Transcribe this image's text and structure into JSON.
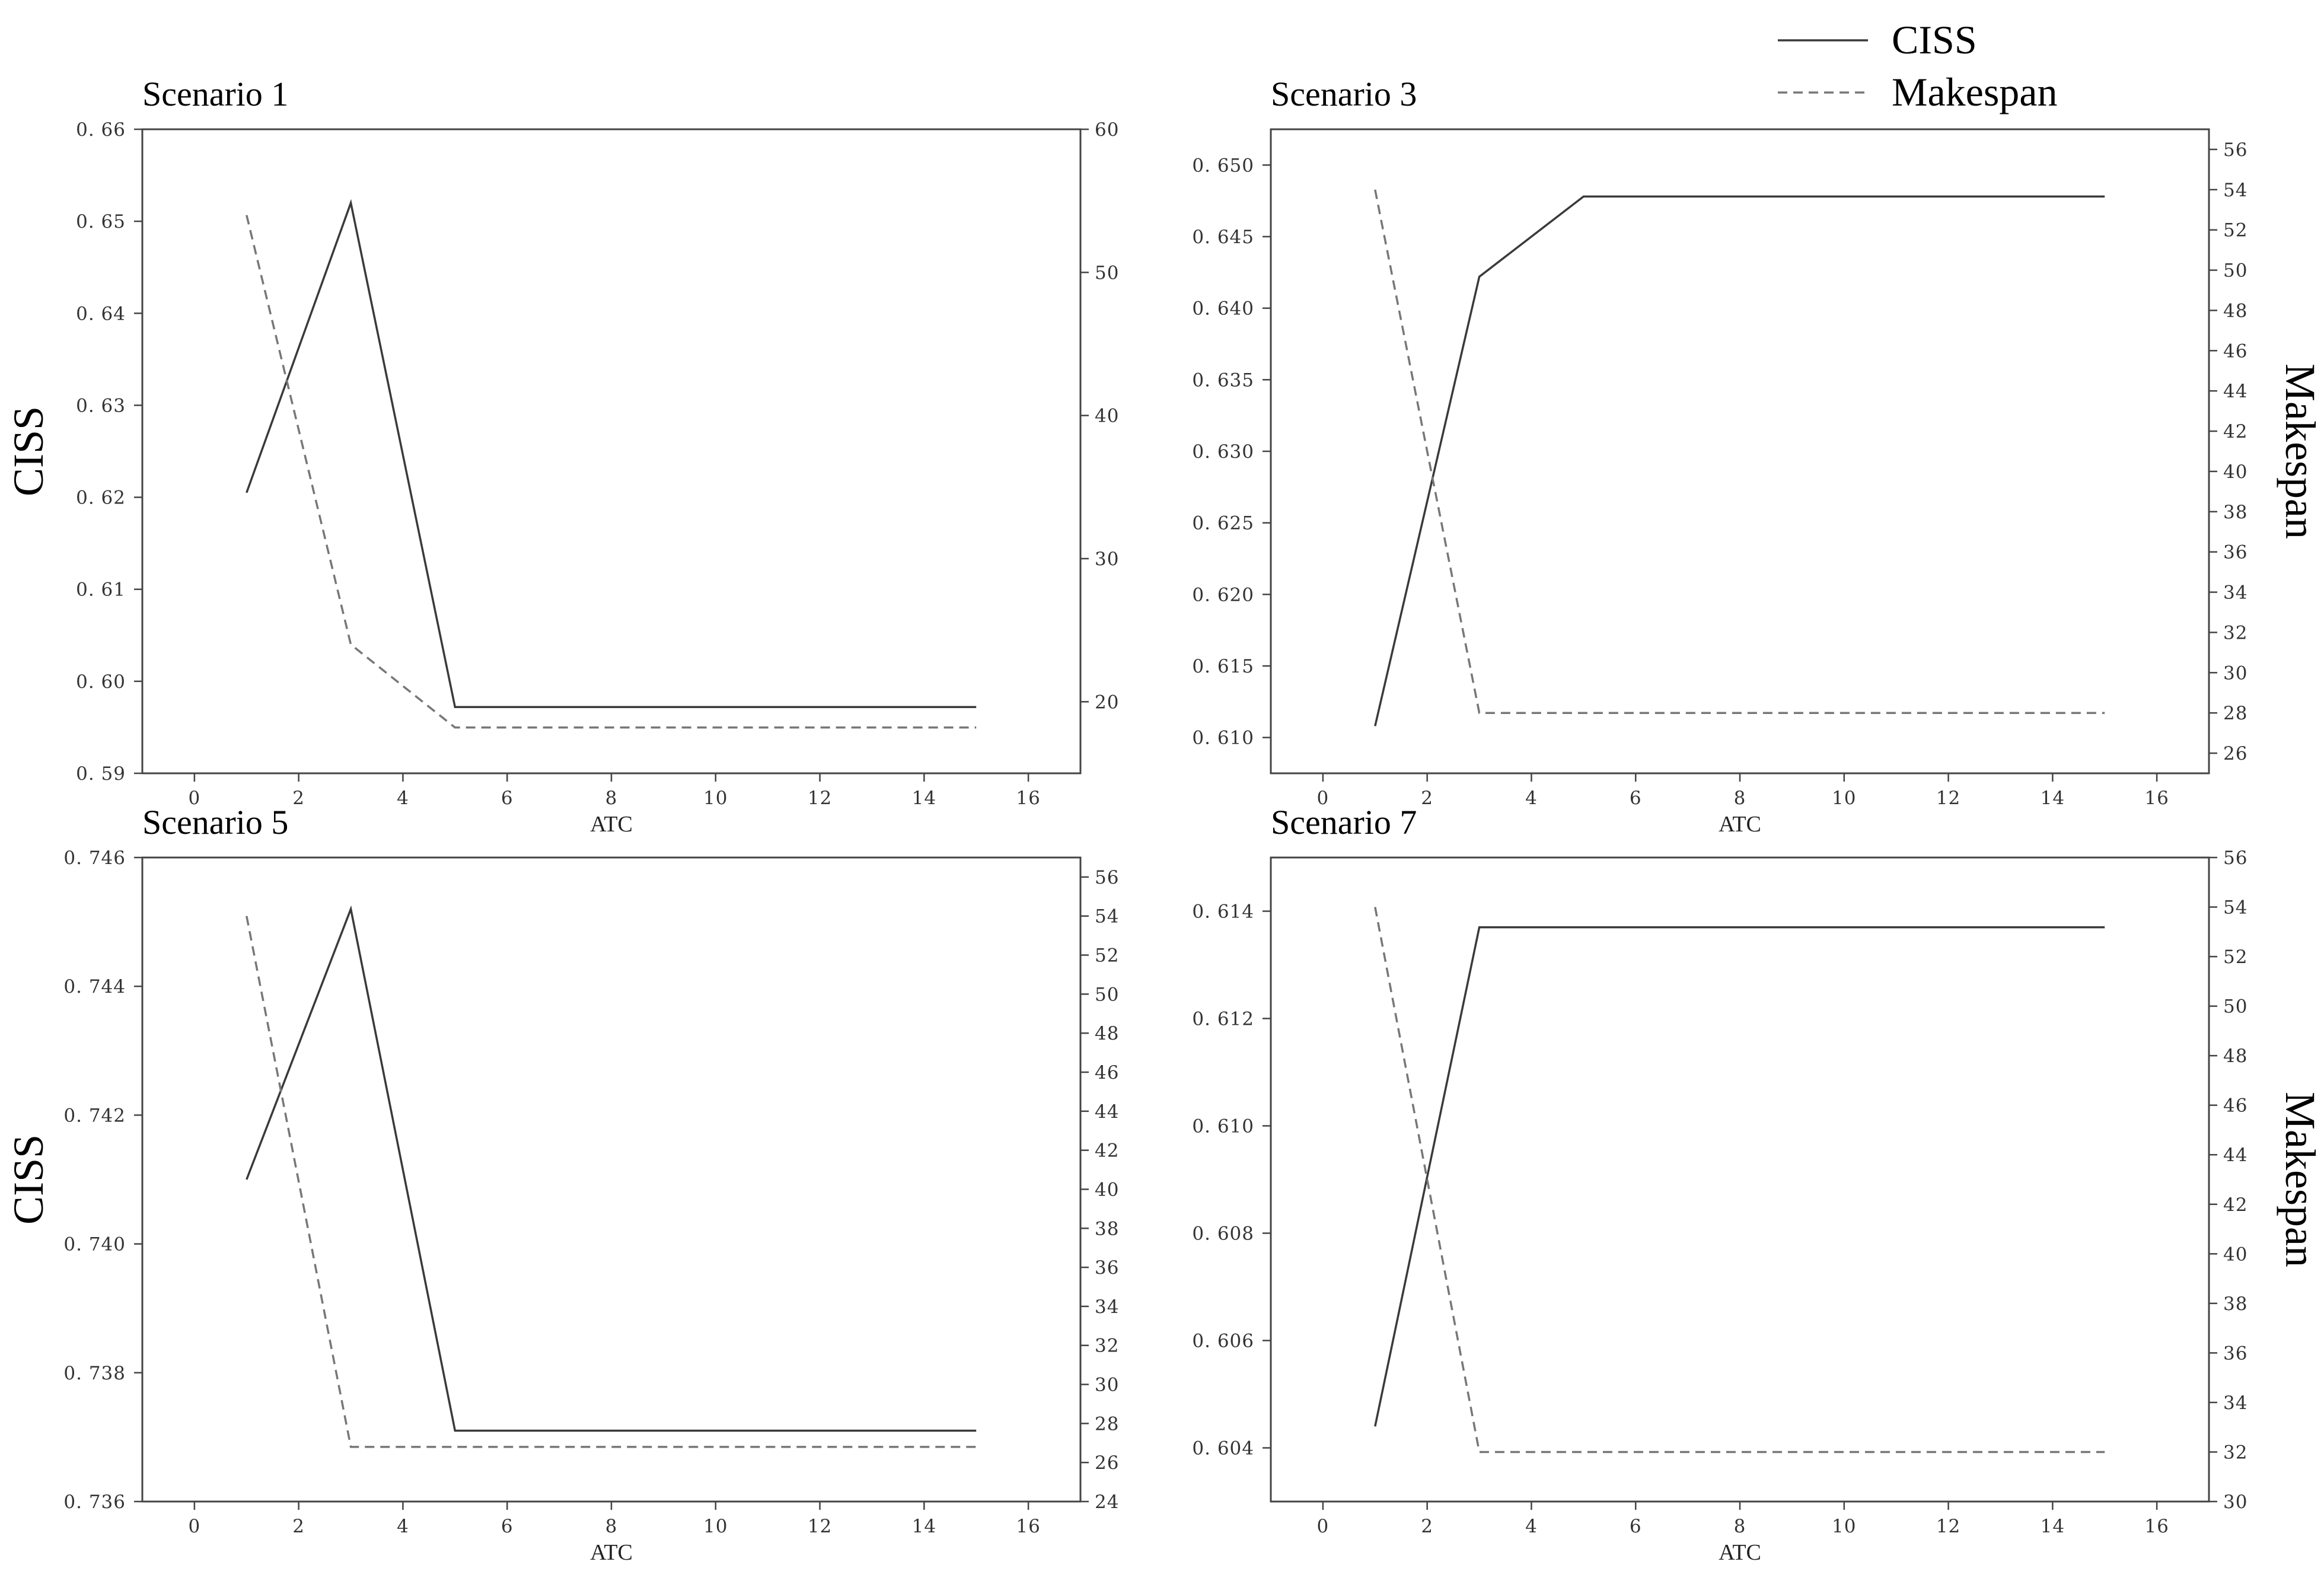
{
  "legend": {
    "ciss_label": "CISS",
    "makespan_label": "Makespan"
  },
  "styles": {
    "ciss_color": "#3a3a3a",
    "makespan_color": "#777777",
    "ciss_line": "solid",
    "makespan_line": "dashed"
  },
  "chart_data": [
    {
      "type": "line",
      "title": "Scenario 1",
      "xlabel": "ATC",
      "ylabel": "CISS",
      "y2label": "",
      "xlim": [
        -1,
        17
      ],
      "xticks": [
        0,
        2,
        4,
        6,
        8,
        10,
        12,
        14,
        16
      ],
      "ylim": [
        0.59,
        0.66
      ],
      "yticks": [
        "0.59",
        "0.60",
        "0.61",
        "0.62",
        "0.63",
        "0.64",
        "0.65",
        "0.66"
      ],
      "y2lim": [
        15,
        60
      ],
      "y2ticks": [
        "20",
        "30",
        "40",
        "50",
        "60"
      ],
      "series": [
        {
          "name": "CISS",
          "axis": "left",
          "x": [
            1,
            3,
            5,
            15
          ],
          "values": [
            0.6205,
            0.652,
            0.5972,
            0.5972
          ]
        },
        {
          "name": "Makespan",
          "axis": "right",
          "x": [
            1,
            3,
            5,
            15
          ],
          "values": [
            54,
            24,
            18.2,
            18.2
          ]
        }
      ]
    },
    {
      "type": "line",
      "title": "Scenario 3",
      "xlabel": "ATC",
      "ylabel": "",
      "y2label": "Makespan",
      "xlim": [
        -1,
        17
      ],
      "xticks": [
        0,
        2,
        4,
        6,
        8,
        10,
        12,
        14,
        16
      ],
      "ylim": [
        0.6075,
        0.6525
      ],
      "yticks": [
        "0.610",
        "0.615",
        "0.620",
        "0.625",
        "0.630",
        "0.635",
        "0.640",
        "0.645",
        "0.650"
      ],
      "y2lim": [
        25,
        57
      ],
      "y2ticks": [
        "26",
        "28",
        "30",
        "32",
        "34",
        "36",
        "38",
        "40",
        "42",
        "44",
        "46",
        "48",
        "50",
        "52",
        "54",
        "56"
      ],
      "series": [
        {
          "name": "CISS",
          "axis": "left",
          "x": [
            1,
            3,
            5,
            15
          ],
          "values": [
            0.6108,
            0.6422,
            0.6478,
            0.6478
          ]
        },
        {
          "name": "Makespan",
          "axis": "right",
          "x": [
            1,
            3,
            15
          ],
          "values": [
            54,
            28,
            28
          ]
        }
      ]
    },
    {
      "type": "line",
      "title": "Scenario 5",
      "xlabel": "ATC",
      "ylabel": "CISS",
      "y2label": "",
      "xlim": [
        -1,
        17
      ],
      "xticks": [
        0,
        2,
        4,
        6,
        8,
        10,
        12,
        14,
        16
      ],
      "ylim": [
        0.736,
        0.746
      ],
      "yticks": [
        "0.736",
        "0.738",
        "0.740",
        "0.742",
        "0.744",
        "0.746"
      ],
      "y2lim": [
        24,
        57
      ],
      "y2ticks": [
        "24",
        "26",
        "28",
        "30",
        "32",
        "34",
        "36",
        "38",
        "40",
        "42",
        "44",
        "46",
        "48",
        "50",
        "52",
        "54",
        "56"
      ],
      "series": [
        {
          "name": "CISS",
          "axis": "left",
          "x": [
            1,
            3,
            5,
            15
          ],
          "values": [
            0.741,
            0.7452,
            0.7371,
            0.7371
          ]
        },
        {
          "name": "Makespan",
          "axis": "right",
          "x": [
            1,
            3,
            15
          ],
          "values": [
            54,
            26.8,
            26.8
          ]
        }
      ]
    },
    {
      "type": "line",
      "title": "Scenario 7",
      "xlabel": "ATC",
      "ylabel": "",
      "y2label": "Makespan",
      "xlim": [
        -1,
        17
      ],
      "xticks": [
        0,
        2,
        4,
        6,
        8,
        10,
        12,
        14,
        16
      ],
      "ylim": [
        0.603,
        0.615
      ],
      "yticks": [
        "0.604",
        "0.606",
        "0.608",
        "0.610",
        "0.612",
        "0.614"
      ],
      "y2lim": [
        30,
        56
      ],
      "y2ticks": [
        "30",
        "32",
        "34",
        "36",
        "38",
        "40",
        "42",
        "44",
        "46",
        "48",
        "50",
        "52",
        "54",
        "56"
      ],
      "series": [
        {
          "name": "CISS",
          "axis": "left",
          "x": [
            1,
            3,
            15
          ],
          "values": [
            0.6044,
            0.6137,
            0.6137
          ]
        },
        {
          "name": "Makespan",
          "axis": "right",
          "x": [
            1,
            3,
            15
          ],
          "values": [
            54,
            32,
            32
          ]
        }
      ]
    }
  ]
}
